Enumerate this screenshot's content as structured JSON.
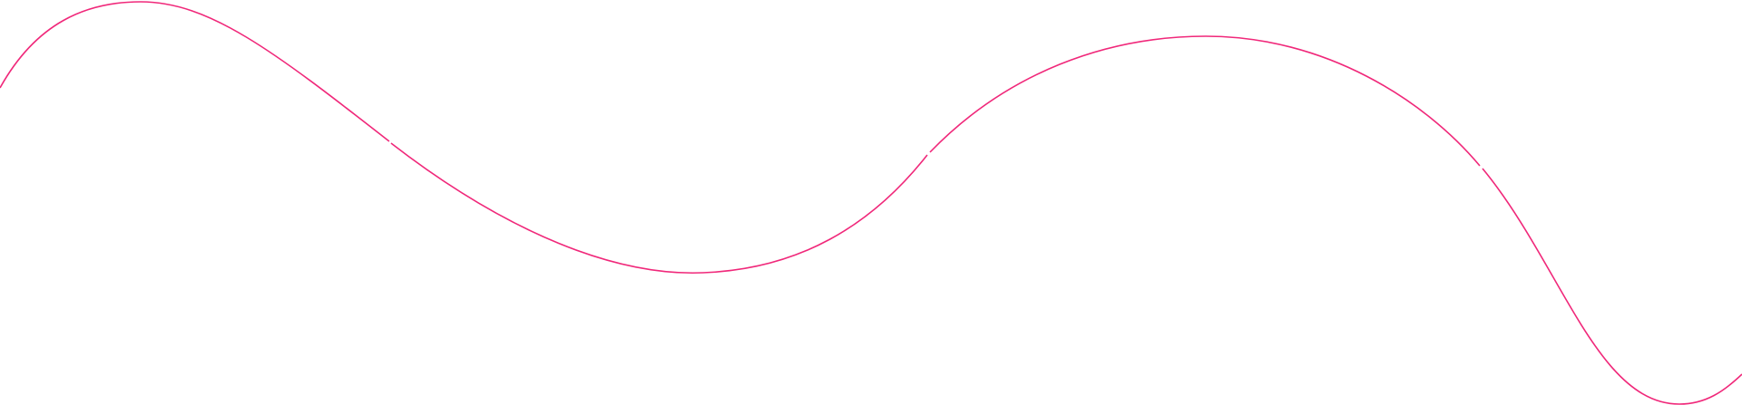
{
  "decoration": {
    "type": "wavy-line",
    "segments": 4,
    "stroke_color": "#f0287a",
    "background_color": "#ffffff"
  }
}
